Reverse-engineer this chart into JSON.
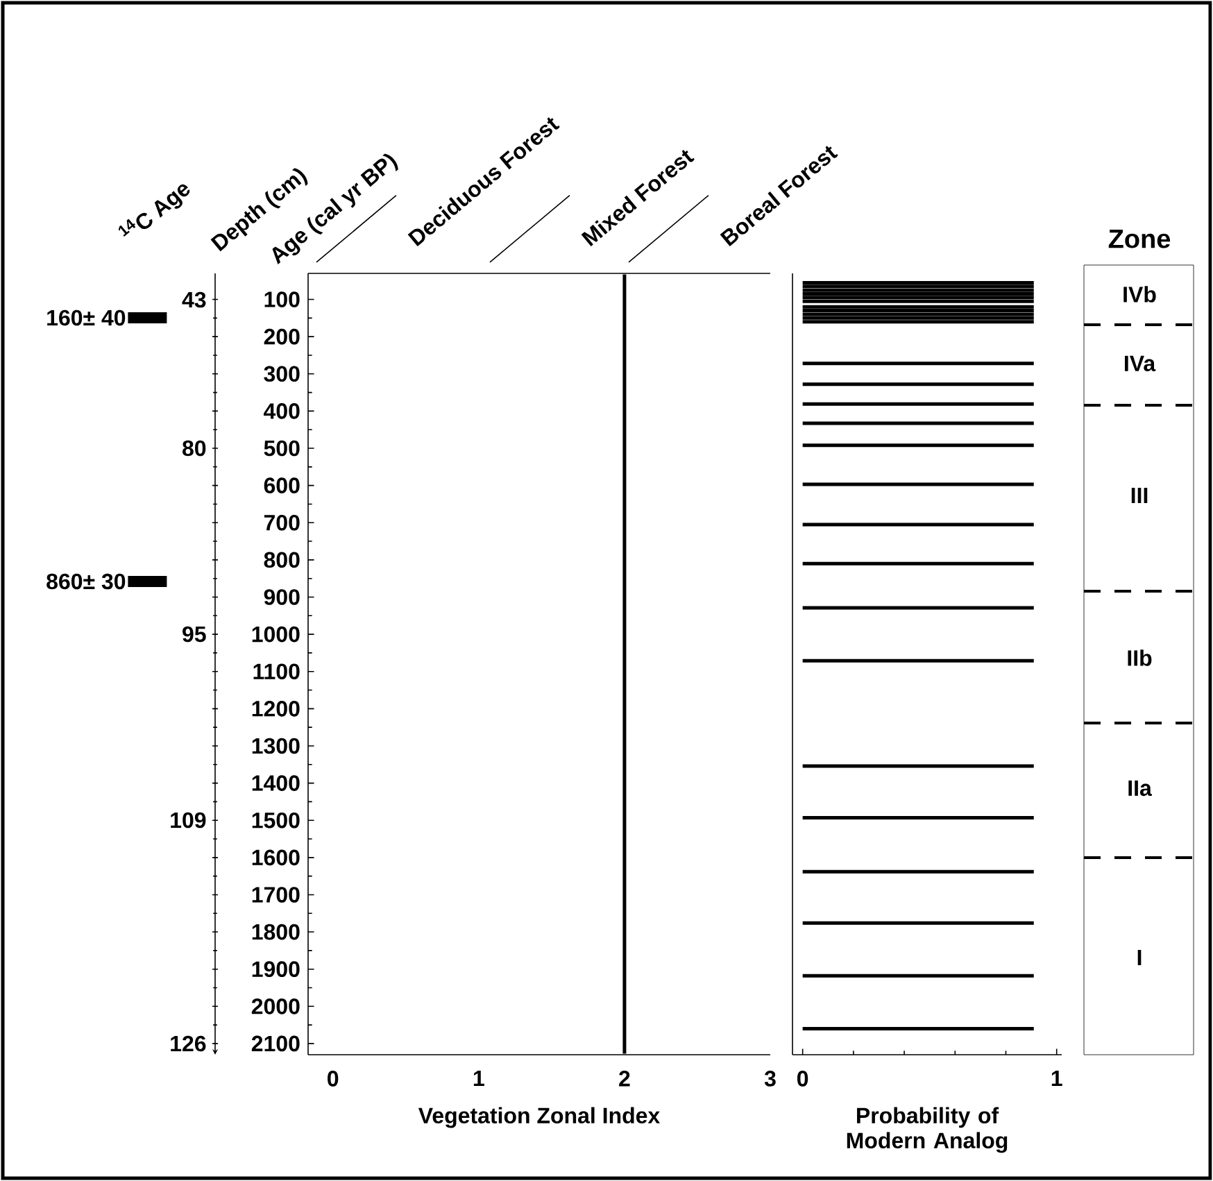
{
  "chart_data": [
    {
      "type": "line",
      "orientation": "horizontal",
      "xlabel": "Vegetation Zonal Index",
      "ylabel": "Age (cal yr BP)",
      "series": [
        {
          "color": "#000000",
          "x": [
            33,
            2127
          ],
          "values": [
            2,
            2
          ]
        }
      ],
      "xlim": [
        -0.17,
        3
      ],
      "xticks": [
        0,
        1,
        2,
        3
      ],
      "ylim": [
        2130,
        30
      ],
      "yticks": [
        100,
        200,
        300,
        400,
        500,
        600,
        700,
        800,
        900,
        1000,
        1100,
        1200,
        1300,
        1400,
        1500,
        1600,
        1700,
        1800,
        1900,
        2000,
        2100
      ],
      "annotations": [
        "$^{14}$C Age",
        "Depth (cm)",
        "Zone",
        "43",
        "80",
        "95",
        "109",
        "126",
        "160± 40",
        "860± 30",
        "Deciduous Forest",
        "Mixed Forest",
        "Boreal Forest",
        "IVb",
        "IVa",
        "III",
        "IIb",
        "IIa",
        "I"
      ]
    },
    {
      "type": "bar",
      "orientation": "horizontal",
      "xlabel": "Probability of Modern Analog",
      "color": "#000000",
      "x": [
        55,
        65,
        75,
        85,
        95,
        105,
        120,
        130,
        140,
        150,
        160,
        272,
        328,
        381,
        433,
        492,
        597,
        705,
        810,
        929,
        1071,
        1354,
        1493,
        1638,
        1776,
        1918,
        2060
      ],
      "values": [
        0.91,
        0.91,
        0.91,
        0.91,
        0.91,
        0.91,
        0.91,
        0.91,
        0.91,
        0.91,
        0.91,
        0.91,
        0.91,
        0.91,
        0.91,
        0.91,
        0.91,
        0.91,
        0.91,
        0.91,
        0.91,
        0.91,
        0.91,
        0.91,
        0.91,
        0.91,
        0.91
      ],
      "xlim": [
        -0.04,
        1.02
      ],
      "xticks": [
        0,
        1
      ],
      "ylim": [
        2130,
        30
      ],
      "tick_labels": "x"
    }
  ]
}
